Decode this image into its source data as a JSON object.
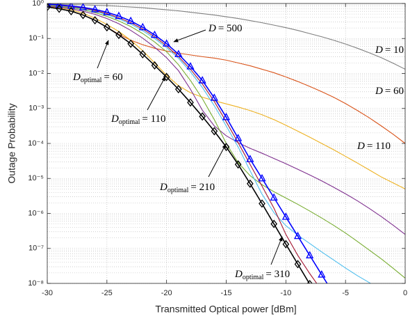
{
  "chart_data": {
    "type": "line",
    "x_label": "Transmitted Optical power [dBm]",
    "y_label": "Outage Probability",
    "y_log": true,
    "grid": true,
    "minor_grid": true,
    "xlim": [
      -30,
      0
    ],
    "xticks": [
      -30,
      -25,
      -20,
      -15,
      -10,
      -5,
      0
    ],
    "ylim": [
      1e-08,
      1
    ],
    "yticks": [
      {
        "value": 1e-08,
        "label": "10⁻⁸"
      },
      {
        "value": 1e-07,
        "label": "10⁻⁷"
      },
      {
        "value": 1e-06,
        "label": "10⁻⁶"
      },
      {
        "value": 1e-05,
        "label": "10⁻⁵"
      },
      {
        "value": 0.0001,
        "label": "10⁻⁴"
      },
      {
        "value": 0.001,
        "label": "10⁻³"
      },
      {
        "value": 0.01,
        "label": "10⁻²"
      },
      {
        "value": 0.1,
        "label": "10⁻¹"
      },
      {
        "value": 1,
        "label": "10⁰"
      }
    ],
    "x": [
      -30,
      -29,
      -28,
      -27,
      -26,
      -25,
      -24,
      -23,
      -22,
      -21,
      -20,
      -19,
      -18,
      -17,
      -16,
      -15,
      -14,
      -13,
      -12,
      -11,
      -10,
      -9,
      -8,
      -7,
      -6,
      -5,
      -4,
      -3,
      -2,
      -1,
      0
    ],
    "series": [
      {
        "color": "#7f7f7f",
        "values": [
          0.955,
          0.955,
          0.933,
          0.912,
          0.891,
          0.871,
          0.832,
          0.794,
          0.759,
          0.708,
          0.661,
          0.617,
          0.562,
          0.513,
          0.468,
          0.417,
          0.372,
          0.324,
          0.282,
          0.24,
          0.204,
          0.17,
          0.138,
          0.112,
          0.0891,
          0.0692,
          0.0525,
          0.0389,
          0.0282,
          0.0195,
          0.0132
        ]
      },
      {
        "color": "#d95319",
        "values": [
          0.794,
          0.708,
          0.603,
          0.468,
          0.331,
          0.209,
          0.132,
          0.0891,
          0.0661,
          0.0525,
          0.0437,
          0.038,
          0.0339,
          0.0302,
          0.0275,
          0.024,
          0.02,
          0.0166,
          0.0132,
          0.0105,
          0.00794,
          0.00589,
          0.00427,
          0.00302,
          0.00209,
          0.00138,
          0.000871,
          0.000537,
          0.000316,
          0.000182,
          0.0001
        ]
      },
      {
        "color": "#edb120",
        "values": [
          0.832,
          0.759,
          0.661,
          0.525,
          0.38,
          0.251,
          0.158,
          0.0891,
          0.0447,
          0.02,
          0.00891,
          0.00447,
          0.00282,
          0.00209,
          0.00166,
          0.00135,
          0.0011,
          0.000871,
          0.000661,
          0.000479,
          0.000331,
          0.000224,
          0.000151,
          0.0001,
          6.61e-05,
          4.27e-05,
          2.75e-05,
          1.74e-05,
          1.1e-05,
          7.41e-06,
          5.01e-06
        ]
      },
      {
        "color": "#7e2f8e",
        "values": [
          0.851,
          0.794,
          0.708,
          0.603,
          0.49,
          0.372,
          0.263,
          0.17,
          0.102,
          0.0562,
          0.0282,
          0.012,
          0.00355,
          0.000891,
          0.000316,
          0.000166,
          0.000105,
          7.24e-05,
          5.25e-05,
          3.72e-05,
          2.63e-05,
          1.82e-05,
          1.26e-05,
          8.51e-06,
          5.62e-06,
          3.63e-06,
          2.29e-06,
          1.38e-06,
          8.13e-07,
          4.57e-07,
          2.51e-07
        ]
      },
      {
        "color": "#77ac30",
        "values": [
          0.891,
          0.832,
          0.759,
          0.661,
          0.55,
          0.427,
          0.316,
          0.219,
          0.138,
          0.0794,
          0.0417,
          0.0178,
          0.00631,
          0.00191,
          0.000479,
          0.0001,
          2.82e-05,
          1.2e-05,
          6.61e-06,
          4.17e-06,
          2.75e-06,
          1.82e-06,
          1.17e-06,
          7.41e-07,
          4.57e-07,
          2.75e-07,
          1.58e-07,
          8.91e-08,
          5.01e-08,
          2.69e-08,
          1.41e-08
        ]
      },
      {
        "color": "#4dbeee",
        "values": [
          0.912,
          0.871,
          0.794,
          0.708,
          0.603,
          0.479,
          0.363,
          0.257,
          0.166,
          0.1,
          0.055,
          0.0269,
          0.0112,
          0.00398,
          0.0012,
          0.000316,
          7.94e-05,
          1.66e-05,
          3.55e-06,
          1.05e-06,
          4.47e-07,
          2.4e-07,
          1.38e-07,
          7.94e-08,
          4.68e-08,
          2.75e-08,
          1.66e-08,
          1.05e-08,
          6.31e-09,
          null,
          null
        ]
      },
      {
        "color": "#a2142f",
        "values": [
          0.933,
          0.891,
          0.813,
          0.741,
          0.631,
          0.513,
          0.389,
          0.282,
          0.186,
          0.112,
          0.0617,
          0.0302,
          0.0132,
          0.00501,
          0.00158,
          0.000417,
          0.000105,
          2.51e-05,
          6.03e-06,
          1.41e-06,
          2.51e-07,
          6.31e-08,
          1.91e-08,
          6.31e-09,
          null,
          null,
          null,
          null,
          null,
          null,
          null
        ]
      },
      {
        "color": "#0000ff",
        "marker": "triangle",
        "values": [
          0.955,
          0.912,
          0.851,
          0.776,
          0.676,
          0.562,
          0.437,
          0.316,
          0.209,
          0.126,
          0.0708,
          0.0355,
          0.0158,
          0.00631,
          0.002,
          0.000562,
          0.000141,
          3.55e-05,
          1e-05,
          2.82e-06,
          7.94e-07,
          2.24e-07,
          6.31e-08,
          1.78e-08,
          5.01e-09,
          null,
          null,
          null,
          null,
          null,
          null
        ]
      },
      {
        "color": "#000000",
        "marker": "diamond",
        "values": [
          0.794,
          0.708,
          0.603,
          0.468,
          0.331,
          0.209,
          0.126,
          0.0708,
          0.0355,
          0.017,
          0.00794,
          0.00355,
          0.00148,
          0.000589,
          0.000224,
          7.94e-05,
          2.51e-05,
          7.08e-06,
          1.91e-06,
          5.01e-07,
          1.32e-07,
          3.55e-08,
          9.55e-09,
          null,
          null,
          null,
          null,
          null,
          null,
          null,
          null
        ]
      }
    ],
    "annotations": [
      {
        "symbol": "D",
        "text": "= 500"
      },
      {
        "symbol": "D",
        "text": "= 10"
      },
      {
        "symbol": "D",
        "text": "= 60"
      },
      {
        "symbol": "D",
        "text": "= 110"
      },
      {
        "symbol": "D",
        "subscript": "optimal",
        "text": "= 60"
      },
      {
        "symbol": "D",
        "subscript": "optimal",
        "text": "= 110"
      },
      {
        "symbol": "D",
        "subscript": "optimal",
        "text": "= 210"
      },
      {
        "symbol": "D",
        "subscript": "optimal",
        "text": "= 310"
      }
    ]
  }
}
